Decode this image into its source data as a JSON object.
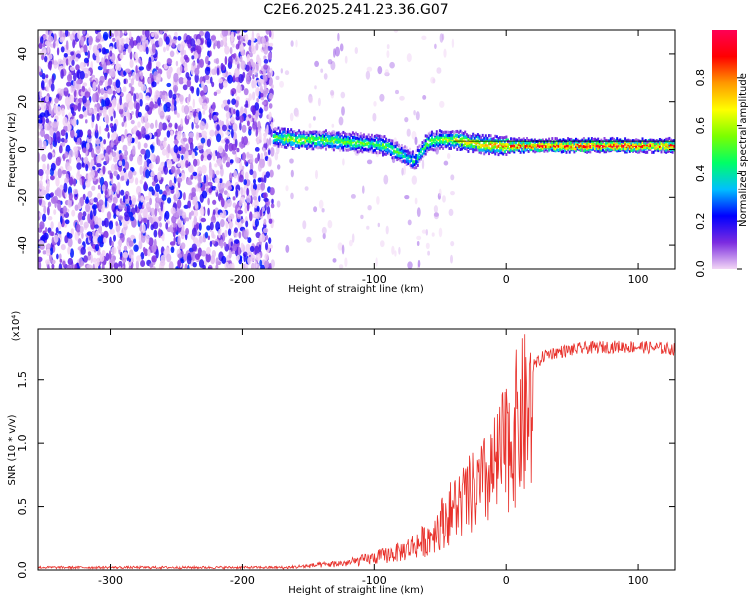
{
  "figure_title": "C2E6.2025.241.23.36.G07",
  "chart_data": [
    {
      "type": "heatmap",
      "name": "spectrogram",
      "xlabel": "Height of straight line (km)",
      "ylabel": "Frequency (Hz)",
      "xlim": [
        -355,
        128
      ],
      "ylim": [
        -50,
        50
      ],
      "xticks": [
        -300,
        -200,
        -100,
        0,
        100
      ],
      "yticks": [
        -40,
        -20,
        0,
        20,
        40
      ],
      "colorbar": {
        "label": "Normalized spectral amplitude",
        "range": [
          0,
          1
        ],
        "ticks": [
          0.0,
          0.2,
          0.4,
          0.6,
          0.8
        ],
        "colors": [
          "#f2d6f5",
          "#7b2be0",
          "#0000ff",
          "#00bfff",
          "#00ff66",
          "#7bff00",
          "#ffff00",
          "#ff9900",
          "#ff0000",
          "#ff0055"
        ]
      },
      "regions": [
        {
          "label": "noise",
          "x_range": [
            -355,
            -177
          ],
          "freq_range": [
            -50,
            50
          ],
          "amplitude": [
            0.0,
            0.25
          ]
        },
        {
          "label": "sparse noise",
          "x_range": [
            -177,
            -40
          ],
          "freq_range": [
            -50,
            50
          ],
          "amplitude": [
            0.0,
            0.1
          ]
        }
      ],
      "signal_track": {
        "x": [
          -177,
          -160,
          -140,
          -120,
          -100,
          -90,
          -80,
          -70,
          -60,
          -50,
          -40,
          -30,
          -20,
          -10,
          0,
          20,
          40,
          60,
          80,
          100,
          128
        ],
        "freq": [
          5,
          4,
          4,
          3,
          2,
          1,
          -2,
          -5,
          3,
          4,
          4,
          3,
          2,
          1.5,
          1.5,
          1.5,
          1.5,
          1.5,
          1.5,
          1.5,
          1.5
        ],
        "amplitude": [
          0.5,
          0.6,
          0.55,
          0.55,
          0.5,
          0.5,
          0.45,
          0.4,
          0.55,
          0.6,
          0.65,
          0.7,
          0.75,
          0.8,
          0.85,
          0.9,
          0.9,
          0.9,
          0.9,
          0.9,
          0.9
        ]
      }
    },
    {
      "type": "line",
      "name": "snr",
      "xlabel": "Height of straight line (km)",
      "ylabel": "SNR (10 * v/v)",
      "y_multiplier": "(x10⁴)",
      "xlim": [
        -355,
        128
      ],
      "ylim": [
        0,
        1.9
      ],
      "xticks": [
        -300,
        -200,
        -100,
        0,
        100
      ],
      "yticks": [
        0.0,
        0.5,
        1.0,
        1.5
      ],
      "color": "#e8302a",
      "series": [
        {
          "name": "SNR",
          "x": [
            -355,
            -300,
            -250,
            -200,
            -170,
            -150,
            -120,
            -100,
            -80,
            -60,
            -50,
            -40,
            -30,
            -20,
            -10,
            0,
            10,
            20,
            30,
            40,
            60,
            80,
            100,
            128
          ],
          "y": [
            0.02,
            0.02,
            0.02,
            0.02,
            0.02,
            0.04,
            0.07,
            0.12,
            0.18,
            0.3,
            0.45,
            0.6,
            0.7,
            0.8,
            0.95,
            1.2,
            1.45,
            1.6,
            1.7,
            1.72,
            1.75,
            1.76,
            1.76,
            1.74
          ]
        }
      ]
    }
  ]
}
